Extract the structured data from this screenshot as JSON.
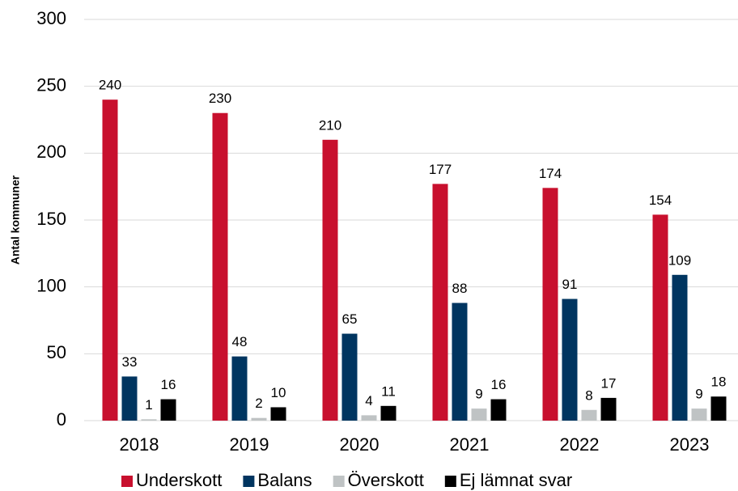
{
  "chart_data": {
    "type": "bar",
    "y_label": "Antal kommuner",
    "categories": [
      "2018",
      "2019",
      "2020",
      "2021",
      "2022",
      "2023"
    ],
    "series": [
      {
        "name": "Underskott",
        "color": "#c8102e",
        "values": [
          240,
          230,
          210,
          177,
          174,
          154
        ]
      },
      {
        "name": "Balans",
        "color": "#003560",
        "values": [
          33,
          48,
          65,
          88,
          91,
          109
        ]
      },
      {
        "name": "Överskott",
        "color": "#bfc3c4",
        "values": [
          1,
          2,
          4,
          9,
          8,
          9
        ]
      },
      {
        "name": "Ej lämnat svar",
        "color": "#000000",
        "values": [
          16,
          10,
          11,
          16,
          17,
          18
        ]
      }
    ],
    "ylim": [
      0,
      300
    ],
    "yticks": [
      0,
      50,
      100,
      150,
      200,
      250,
      300
    ],
    "grid": true
  }
}
